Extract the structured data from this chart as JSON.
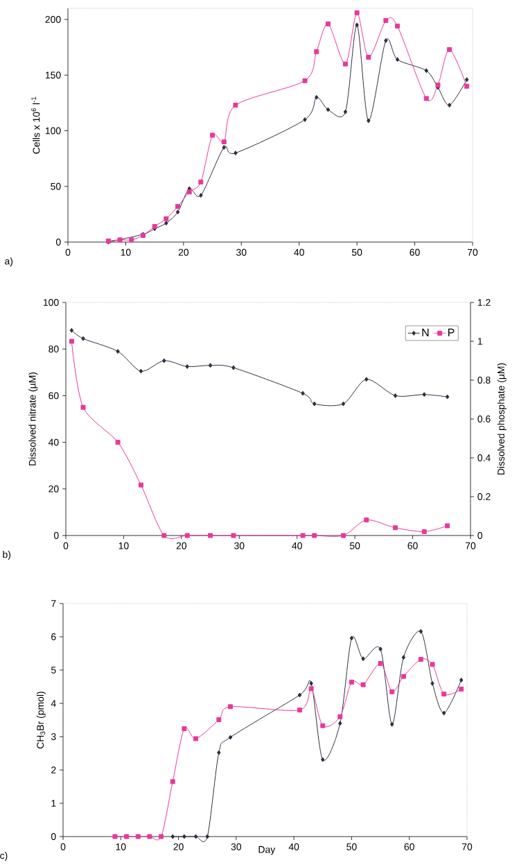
{
  "chart_data": [
    {
      "type": "line",
      "ylabel": "Cells x 10$^{6}$ l$^{-1}$",
      "xlim": [
        0,
        70
      ],
      "xticks": [
        0,
        10,
        20,
        30,
        40,
        50,
        60,
        70
      ],
      "ylim": [
        0,
        210
      ],
      "yticks": [
        0,
        50,
        100,
        150,
        200
      ],
      "annotations": [
        "a)"
      ],
      "series": [
        {
          "color": "#2b3040",
          "marker": "diamond",
          "x": [
            7,
            9,
            11,
            13,
            15,
            17,
            19,
            21,
            23,
            25,
            27,
            29,
            41,
            43,
            45,
            48,
            50,
            52,
            55,
            57,
            62,
            64,
            66,
            69
          ],
          "values": [
            0,
            null,
            null,
            7,
            12,
            17,
            27,
            48,
            42,
            null,
            85,
            80,
            110,
            130,
            119,
            117,
            195,
            109,
            181,
            164,
            154,
            139,
            123,
            146
          ]
        },
        {
          "color": "#e8389a",
          "marker": "square",
          "x": [
            7,
            9,
            11,
            13,
            15,
            17,
            19,
            21,
            23,
            25,
            27,
            29,
            41,
            43,
            45,
            48,
            50,
            52,
            55,
            57,
            62,
            64,
            66,
            69
          ],
          "values": [
            1,
            2,
            2,
            6,
            14,
            21,
            32,
            45,
            54,
            96,
            90,
            123,
            145,
            171,
            196,
            160,
            206,
            166,
            199,
            194,
            129,
            141,
            173,
            140
          ]
        }
      ]
    },
    {
      "type": "line",
      "ylabel": "Dissolved nitrate (µM)",
      "y2label": "Dissolved phosphate (µM)",
      "xlim": [
        0,
        70
      ],
      "xticks": [
        0,
        10,
        20,
        30,
        40,
        50,
        60,
        70
      ],
      "ylim": [
        0,
        100
      ],
      "yticks": [
        0,
        20,
        40,
        60,
        80,
        100
      ],
      "y2lim": [
        0,
        1.2
      ],
      "y2ticks": [
        0,
        0.2,
        0.4,
        0.6,
        0.8,
        1,
        1.2
      ],
      "legend": "top right",
      "annotations": [
        "b)"
      ],
      "series": [
        {
          "name": "N",
          "color": "#2b3040",
          "marker": "diamond",
          "x": [
            1,
            3,
            9,
            13,
            17,
            21,
            25,
            29,
            41,
            43,
            48,
            52,
            57,
            62,
            66
          ],
          "values": [
            88,
            84.5,
            79,
            70.5,
            75,
            72.5,
            73,
            72,
            61,
            56.5,
            56.5,
            67,
            60,
            60.5,
            59.5
          ]
        },
        {
          "name": "P",
          "color": "#e8389a",
          "marker": "square",
          "axis": "y2",
          "x": [
            1,
            3,
            9,
            13,
            17,
            21,
            25,
            29,
            41,
            43,
            48,
            52,
            57,
            62,
            66
          ],
          "values": [
            1.0,
            0.66,
            0.48,
            0.26,
            0,
            0,
            0,
            0,
            0,
            0,
            0,
            0.08,
            0.04,
            0.02,
            0.05
          ]
        }
      ]
    },
    {
      "type": "line",
      "xlabel": "Day",
      "ylabel": "CH$_{3}$Br (pmol)",
      "xlim": [
        0,
        70
      ],
      "xticks": [
        0,
        10,
        20,
        30,
        40,
        50,
        60,
        70
      ],
      "ylim": [
        0,
        7
      ],
      "yticks": [
        0,
        1,
        2,
        3,
        4,
        5,
        6,
        7
      ],
      "annotations": [
        "c)"
      ],
      "series": [
        {
          "color": "#2b3040",
          "marker": "diamond",
          "x": [
            19,
            21,
            23,
            25,
            27,
            29,
            41,
            43,
            45,
            48,
            50,
            52,
            55,
            57,
            59,
            62,
            64,
            66,
            69
          ],
          "values": [
            0,
            0,
            0,
            0,
            2.52,
            2.98,
            4.25,
            4.6,
            2.31,
            3.4,
            5.96,
            5.34,
            5.63,
            3.37,
            5.38,
            6.16,
            4.6,
            3.71,
            4.7
          ]
        },
        {
          "color": "#e8389a",
          "marker": "square",
          "x": [
            9,
            11,
            13,
            15,
            17,
            19,
            21,
            23,
            27,
            29,
            41,
            43,
            45,
            48,
            50,
            52,
            55,
            57,
            59,
            62,
            64,
            66,
            69
          ],
          "values": [
            0,
            0,
            0,
            0,
            0,
            1.65,
            3.24,
            2.94,
            3.51,
            3.9,
            3.8,
            4.44,
            3.33,
            3.6,
            4.64,
            4.56,
            5.2,
            4.35,
            4.81,
            5.32,
            5.17,
            4.28,
            4.43
          ]
        }
      ]
    }
  ]
}
